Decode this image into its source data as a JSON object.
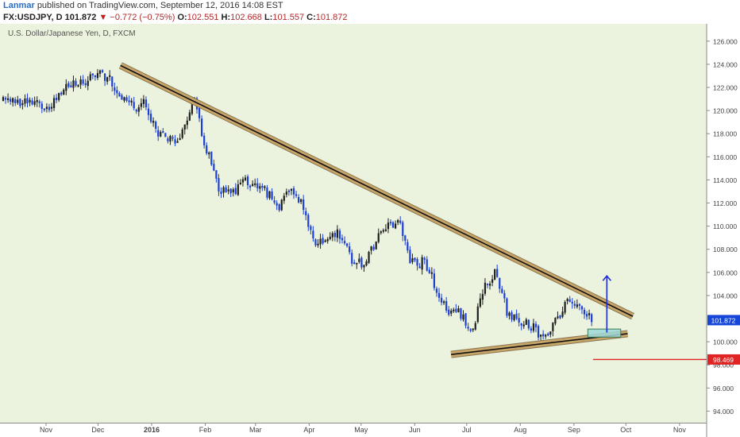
{
  "header": {
    "author": "Lanmar",
    "published_text": "published on TradingView.com, September 12, 2016 14:08 EST",
    "symbol": "FX:USDJPY, D",
    "last": "101.872",
    "change_arrow": "▼",
    "change": "−0.772 (−0.75%)",
    "o_label": "O:",
    "o_value": "102.551",
    "h_label": "H:",
    "h_value": "102.668",
    "l_label": "L:",
    "l_value": "101.557",
    "c_label": "C:",
    "c_value": "101.872"
  },
  "colors": {
    "background": "#ebf2dd",
    "bull_candle": "#1f1f1f",
    "bear_candle": "#1c3fd6",
    "trendline_band": "#c8a66a",
    "price_tag": "#1546d8",
    "support_line": "#e02424",
    "support_tag": "#e02424",
    "target_arrow": "#1e2fd4",
    "target_box": "#9fd8d8"
  },
  "chart_data": {
    "type": "candlestick",
    "title": "U.S. Dollar/Japanese Yen, D, FXCM",
    "x_ticks": [
      "Nov",
      "Dec",
      "2016",
      "Feb",
      "Mar",
      "Apr",
      "May",
      "Jun",
      "Jul",
      "Aug",
      "Sep",
      "Oct",
      "Nov"
    ],
    "y_ticks": [
      "126.000",
      "124.000",
      "122.000",
      "120.000",
      "118.000",
      "116.000",
      "114.000",
      "112.000",
      "110.000",
      "108.000",
      "106.000",
      "104.000",
      "100.000",
      "98.000",
      "96.000",
      "94.000"
    ],
    "ylim": [
      93,
      127.5
    ],
    "last_price": "101.872",
    "support_level": "98.469",
    "close_path": [
      [
        "2015-10-26",
        120.8
      ],
      [
        "2015-11-02",
        120.3
      ],
      [
        "2015-11-09",
        121.2
      ],
      [
        "2015-11-16",
        122.5
      ],
      [
        "2015-11-23",
        122.4
      ],
      [
        "2015-11-30",
        123.3
      ],
      [
        "2015-12-07",
        122.6
      ],
      [
        "2015-12-14",
        121.3
      ],
      [
        "2015-12-21",
        120.4
      ],
      [
        "2015-12-28",
        120.6
      ],
      [
        "2016-01-04",
        118.3
      ],
      [
        "2016-01-11",
        117.4
      ],
      [
        "2016-01-18",
        117.6
      ],
      [
        "2016-01-25",
        121.0
      ],
      [
        "2016-02-01",
        117.0
      ],
      [
        "2016-02-08",
        113.5
      ],
      [
        "2016-02-15",
        112.6
      ],
      [
        "2016-02-22",
        113.8
      ],
      [
        "2016-02-29",
        113.8
      ],
      [
        "2016-03-07",
        113.0
      ],
      [
        "2016-03-14",
        111.6
      ],
      [
        "2016-03-21",
        113.0
      ],
      [
        "2016-03-28",
        112.0
      ],
      [
        "2016-04-04",
        108.5
      ],
      [
        "2016-04-11",
        108.7
      ],
      [
        "2016-04-18",
        109.6
      ],
      [
        "2016-04-25",
        107.1
      ],
      [
        "2016-05-02",
        106.8
      ],
      [
        "2016-05-09",
        108.5
      ],
      [
        "2016-05-16",
        110.1
      ],
      [
        "2016-05-23",
        110.2
      ],
      [
        "2016-05-30",
        106.8
      ],
      [
        "2016-06-06",
        107.0
      ],
      [
        "2016-06-13",
        104.7
      ],
      [
        "2016-06-20",
        102.3
      ],
      [
        "2016-06-27",
        102.6
      ],
      [
        "2016-07-04",
        100.6
      ],
      [
        "2016-07-11",
        104.8
      ],
      [
        "2016-07-18",
        106.0
      ],
      [
        "2016-07-25",
        102.1
      ],
      [
        "2016-08-01",
        101.8
      ],
      [
        "2016-08-08",
        101.3
      ],
      [
        "2016-08-15",
        100.0
      ],
      [
        "2016-08-22",
        101.9
      ],
      [
        "2016-08-29",
        103.9
      ],
      [
        "2016-09-05",
        102.8
      ],
      [
        "2016-09-12",
        101.9
      ]
    ],
    "annotations": [
      {
        "type": "trendline",
        "name": "descending-resistance",
        "start": [
          "2015-12-14",
          123.9
        ],
        "end": [
          "2016-10-05",
          102.2
        ]
      },
      {
        "type": "trendline",
        "name": "ascending-support",
        "start": [
          "2016-06-22",
          98.9
        ],
        "end": [
          "2016-10-02",
          100.7
        ]
      },
      {
        "type": "rectangle",
        "name": "breakout-zone",
        "start": [
          "2016-09-09",
          100.4
        ],
        "end": [
          "2016-09-28",
          101.1
        ]
      },
      {
        "type": "arrow",
        "name": "target-arrow",
        "start": [
          "2016-09-20",
          100.8
        ],
        "end": [
          "2016-09-20",
          105.7
        ]
      },
      {
        "type": "horizontal-ray",
        "name": "support-line",
        "from": "2016-09-12",
        "y": 98.469
      }
    ]
  }
}
